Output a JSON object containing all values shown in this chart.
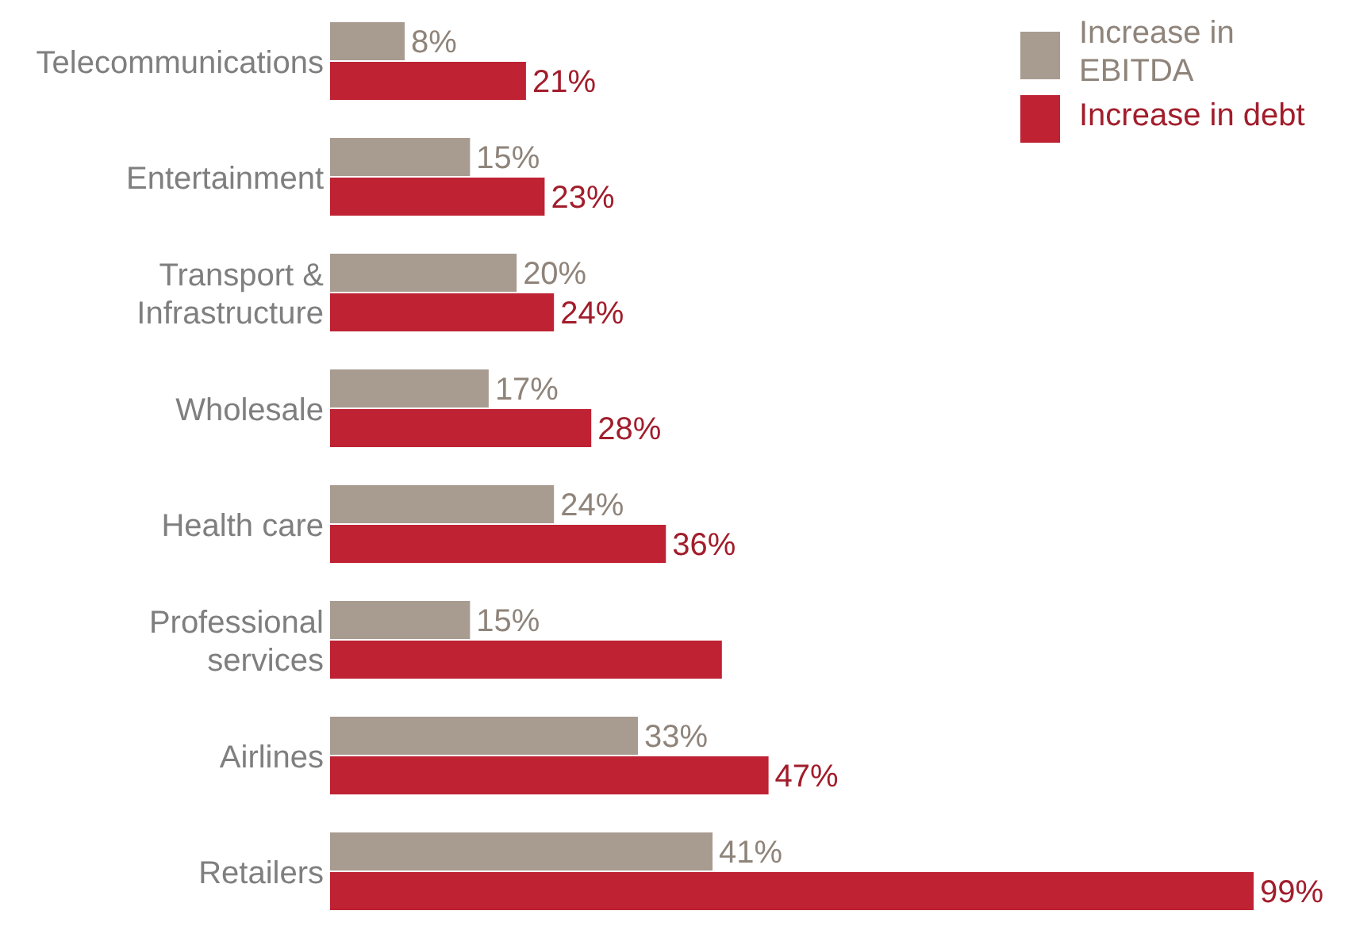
{
  "chart_data": {
    "type": "bar",
    "orientation": "horizontal",
    "categories": [
      "Telecommunications",
      "Entertainment",
      "Transport & Infrastructure",
      "Wholesale",
      "Health care",
      "Professional services",
      "Airlines",
      "Retailers"
    ],
    "series": [
      {
        "name": "Increase in EBITDA",
        "color": "#a89b90",
        "values": [
          8,
          15,
          20,
          17,
          24,
          15,
          33,
          41
        ],
        "value_labels": [
          "8%",
          "15%",
          "20%",
          "17%",
          "24%",
          "15%",
          "33%",
          "41%"
        ]
      },
      {
        "name": "Increase in debt",
        "color": "#be2233",
        "values": [
          21,
          23,
          24,
          28,
          36,
          42,
          47,
          99
        ],
        "value_labels": [
          "21%",
          "23%",
          "24%",
          "28%",
          "36%",
          null,
          "47%",
          "99%"
        ]
      }
    ],
    "legend": "top right"
  }
}
